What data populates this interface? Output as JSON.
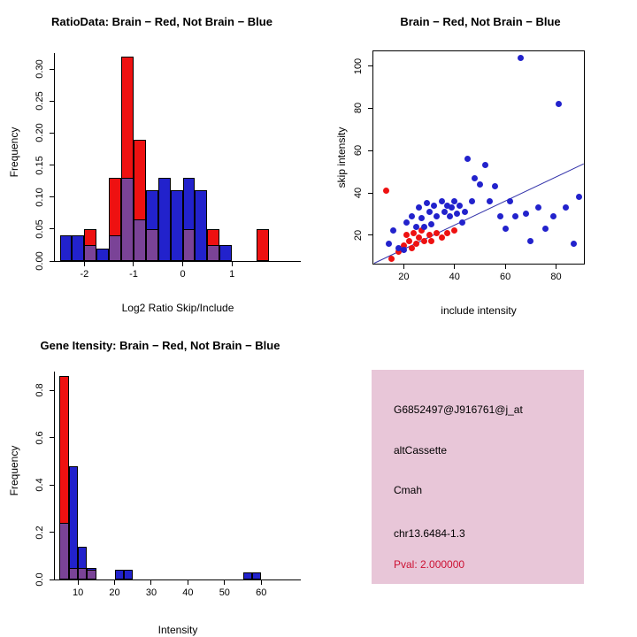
{
  "colors": {
    "red": "#ee1111",
    "blue": "#2222cc",
    "purple": "#7a4397",
    "line_blue": "#3333aa",
    "axis": "#000000",
    "info_bg": "#e8c6d8",
    "pval_red": "#cc1133",
    "background": "#ffffff"
  },
  "chart_data": [
    {
      "id": "ratio-histogram",
      "type": "bar",
      "title": "RatioData: Brain − Red, Not Brain − Blue",
      "xlabel": "Log2 Ratio Skip/Include",
      "ylabel": "Frequency",
      "legend": "Brain = red bars, Not Brain = blue bars, overlap = purple",
      "xlim": [
        -2.6,
        2.4
      ],
      "ylim": [
        0,
        0.325
      ],
      "grid": false,
      "frame": "axes",
      "bin_width": 0.25,
      "xticks": [
        {
          "v": -2,
          "label": "-2"
        },
        {
          "v": -1,
          "label": "-1"
        },
        {
          "v": 0,
          "label": "0"
        },
        {
          "v": 1,
          "label": "1"
        }
      ],
      "yticks": [
        {
          "v": 0,
          "label": "0.00"
        },
        {
          "v": 0.05,
          "label": "0.05"
        },
        {
          "v": 0.1,
          "label": "0.10"
        },
        {
          "v": 0.15,
          "label": "0.15"
        },
        {
          "v": 0.2,
          "label": "0.20"
        },
        {
          "v": 0.25,
          "label": "0.25"
        },
        {
          "v": 0.3,
          "label": "0.30"
        }
      ],
      "bins": [
        {
          "x": -2.5,
          "red": 0,
          "blue": 0.04
        },
        {
          "x": -2.25,
          "red": 0,
          "blue": 0.04
        },
        {
          "x": -2.0,
          "red": 0.05,
          "blue": 0.025
        },
        {
          "x": -1.75,
          "red": 0,
          "blue": 0.02
        },
        {
          "x": -1.5,
          "red": 0.13,
          "blue": 0.04
        },
        {
          "x": -1.25,
          "red": 0.32,
          "blue": 0.13
        },
        {
          "x": -1.0,
          "red": 0.19,
          "blue": 0.065
        },
        {
          "x": -0.75,
          "red": 0.05,
          "blue": 0.11
        },
        {
          "x": -0.5,
          "red": 0,
          "blue": 0.13
        },
        {
          "x": -0.25,
          "red": 0,
          "blue": 0.11
        },
        {
          "x": 0.0,
          "red": 0.05,
          "blue": 0.13
        },
        {
          "x": 0.25,
          "red": 0,
          "blue": 0.11
        },
        {
          "x": 0.5,
          "red": 0.05,
          "blue": 0.025
        },
        {
          "x": 0.75,
          "red": 0,
          "blue": 0.025
        },
        {
          "x": 1.5,
          "red": 0.05,
          "blue": 0
        }
      ]
    },
    {
      "id": "intensity-scatter",
      "type": "scatter",
      "title": "Brain − Red, Not Brain − Blue",
      "xlabel": "include intensity",
      "ylabel": "skip intensity",
      "legend": "Brain = red points, Not Brain = blue points",
      "xlim": [
        8,
        91
      ],
      "ylim": [
        6.5,
        107
      ],
      "grid": false,
      "frame": "box",
      "xticks": [
        {
          "v": 20,
          "label": "20"
        },
        {
          "v": 40,
          "label": "40"
        },
        {
          "v": 60,
          "label": "60"
        },
        {
          "v": 80,
          "label": "80"
        }
      ],
      "yticks": [
        {
          "v": 20,
          "label": "20"
        },
        {
          "v": 40,
          "label": "40"
        },
        {
          "v": 60,
          "label": "60"
        },
        {
          "v": 80,
          "label": "80"
        },
        {
          "v": 100,
          "label": "100"
        }
      ],
      "line": {
        "x1": 8.5,
        "y1": 7,
        "x2": 91,
        "y2": 54
      },
      "series": [
        {
          "name": "Brain",
          "color": "red",
          "points": [
            [
              13,
              41
            ],
            [
              15,
              9
            ],
            [
              18,
              12
            ],
            [
              20,
              15
            ],
            [
              21,
              20
            ],
            [
              22,
              17
            ],
            [
              23,
              14
            ],
            [
              24,
              21
            ],
            [
              25,
              16
            ],
            [
              26,
              19
            ],
            [
              27,
              22
            ],
            [
              28,
              17
            ],
            [
              30,
              20
            ],
            [
              31,
              17
            ],
            [
              33,
              21
            ],
            [
              35,
              19
            ],
            [
              37,
              21
            ],
            [
              40,
              22
            ]
          ]
        },
        {
          "name": "Not Brain",
          "color": "blue",
          "points": [
            [
              14,
              16
            ],
            [
              16,
              22
            ],
            [
              18,
              14
            ],
            [
              20,
              13
            ],
            [
              21,
              26
            ],
            [
              23,
              29
            ],
            [
              25,
              24
            ],
            [
              26,
              33
            ],
            [
              27,
              28
            ],
            [
              28,
              24
            ],
            [
              29,
              35
            ],
            [
              30,
              31
            ],
            [
              31,
              25
            ],
            [
              32,
              34
            ],
            [
              33,
              29
            ],
            [
              35,
              36
            ],
            [
              36,
              31
            ],
            [
              37,
              34
            ],
            [
              38,
              29
            ],
            [
              39,
              33
            ],
            [
              40,
              36
            ],
            [
              41,
              30
            ],
            [
              42,
              34
            ],
            [
              43,
              26
            ],
            [
              44,
              31
            ],
            [
              45,
              56
            ],
            [
              47,
              36
            ],
            [
              48,
              47
            ],
            [
              50,
              44
            ],
            [
              52,
              53
            ],
            [
              54,
              36
            ],
            [
              56,
              43
            ],
            [
              58,
              29
            ],
            [
              60,
              23
            ],
            [
              62,
              36
            ],
            [
              64,
              29
            ],
            [
              66,
              104
            ],
            [
              68,
              30
            ],
            [
              70,
              17
            ],
            [
              73,
              33
            ],
            [
              76,
              23
            ],
            [
              79,
              29
            ],
            [
              81,
              82
            ],
            [
              84,
              33
            ],
            [
              87,
              16
            ],
            [
              89,
              38
            ]
          ]
        }
      ]
    },
    {
      "id": "gene-intensity-histogram",
      "type": "bar",
      "title": "Gene Itensity: Brain − Red, Not Brain − Blue",
      "xlabel": "Intensity",
      "ylabel": "Frequency",
      "legend": "Brain = red bars, Not Brain = blue bars, overlap = purple",
      "xlim": [
        3.7,
        70.8
      ],
      "ylim": [
        0,
        0.88
      ],
      "grid": false,
      "frame": "axes",
      "bin_width": 2.5,
      "xticks": [
        {
          "v": 10,
          "label": "10"
        },
        {
          "v": 20,
          "label": "20"
        },
        {
          "v": 30,
          "label": "30"
        },
        {
          "v": 40,
          "label": "40"
        },
        {
          "v": 50,
          "label": "50"
        },
        {
          "v": 60,
          "label": "60"
        }
      ],
      "yticks": [
        {
          "v": 0,
          "label": "0.0"
        },
        {
          "v": 0.2,
          "label": "0.2"
        },
        {
          "v": 0.4,
          "label": "0.4"
        },
        {
          "v": 0.6,
          "label": "0.6"
        },
        {
          "v": 0.8,
          "label": "0.8"
        }
      ],
      "bins": [
        {
          "x": 5,
          "red": 0.86,
          "blue": 0.24
        },
        {
          "x": 7.5,
          "red": 0.05,
          "blue": 0.48
        },
        {
          "x": 10,
          "red": 0.05,
          "blue": 0.14
        },
        {
          "x": 12.5,
          "red": 0.04,
          "blue": 0.05
        },
        {
          "x": 20,
          "red": 0,
          "blue": 0.04
        },
        {
          "x": 22.5,
          "red": 0,
          "blue": 0.04
        },
        {
          "x": 55,
          "red": 0,
          "blue": 0.03
        },
        {
          "x": 57.5,
          "red": 0,
          "blue": 0.03
        }
      ]
    }
  ],
  "info_panel": {
    "probe_id": "G6852497@J916761@j_at",
    "event_type": "altCassette",
    "gene": "Cmah",
    "location": "chr13.6484-1.3",
    "pval": "Pval: 2.000000"
  }
}
